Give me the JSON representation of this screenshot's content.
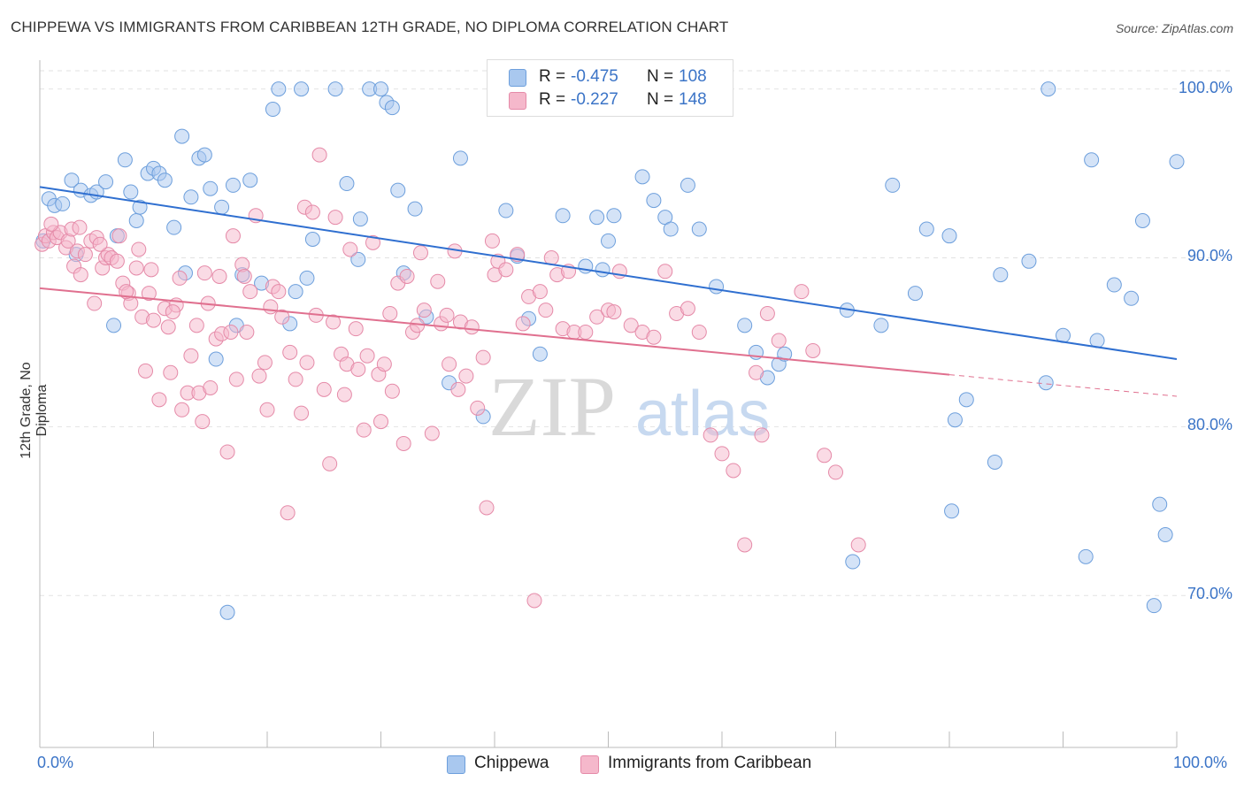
{
  "title": "CHIPPEWA VS IMMIGRANTS FROM CARIBBEAN 12TH GRADE, NO DIPLOMA CORRELATION CHART",
  "source": "Source: ZipAtlas.com",
  "watermark": {
    "zip": "ZIP",
    "atlas": "atlas"
  },
  "legend": {
    "r_label": "R =",
    "n_label": "N =",
    "rows": [
      {
        "r": "-0.475",
        "n": "108",
        "color": "#a9c8ef"
      },
      {
        "r": "-0.227",
        "n": "148",
        "color": "#f5b8cb"
      }
    ]
  },
  "chart_data": {
    "type": "scatter",
    "title": "CHIPPEWA VS IMMIGRANTS FROM CARIBBEAN 12TH GRADE, NO DIPLOMA CORRELATION CHART",
    "xlabel": "",
    "ylabel": "12th Grade, No Diploma",
    "xlim": [
      0,
      100
    ],
    "ylim": [
      61,
      101.5
    ],
    "x_tick_labels": [
      "0.0%",
      "100.0%"
    ],
    "y_ticks": [
      70,
      80,
      90,
      100
    ],
    "y_tick_labels": [
      "70.0%",
      "80.0%",
      "90.0%",
      "100.0%"
    ],
    "grid": "horizontal dashed",
    "legend_position": "top-center",
    "series": [
      {
        "name": "Chippewa",
        "color": "#a9c8ef",
        "stroke": "#6d9fdc",
        "trend": {
          "x0": 0,
          "y0": 94.2,
          "x1": 100,
          "y1": 84.0,
          "dashed_from": null
        },
        "points": [
          [
            0.3,
            91.0
          ],
          [
            0.8,
            93.5
          ],
          [
            1.3,
            93.1
          ],
          [
            2.0,
            93.2
          ],
          [
            2.8,
            94.6
          ],
          [
            3.2,
            90.2
          ],
          [
            3.6,
            94.0
          ],
          [
            4.5,
            93.7
          ],
          [
            5.0,
            93.9
          ],
          [
            5.8,
            94.5
          ],
          [
            6.5,
            86.0
          ],
          [
            6.8,
            91.3
          ],
          [
            7.5,
            95.8
          ],
          [
            8.0,
            93.9
          ],
          [
            8.5,
            92.2
          ],
          [
            8.8,
            93.0
          ],
          [
            9.5,
            95.0
          ],
          [
            10.0,
            95.3
          ],
          [
            10.5,
            95.0
          ],
          [
            11.0,
            94.6
          ],
          [
            11.8,
            91.8
          ],
          [
            12.5,
            97.2
          ],
          [
            12.8,
            89.1
          ],
          [
            13.3,
            93.6
          ],
          [
            14.0,
            95.9
          ],
          [
            14.5,
            96.1
          ],
          [
            15.0,
            94.1
          ],
          [
            15.5,
            84.0
          ],
          [
            16.0,
            93.0
          ],
          [
            16.5,
            69.0
          ],
          [
            17.0,
            94.3
          ],
          [
            17.3,
            86.0
          ],
          [
            17.8,
            89.0
          ],
          [
            18.5,
            94.6
          ],
          [
            19.5,
            88.5
          ],
          [
            20.5,
            98.8
          ],
          [
            21.0,
            100.0
          ],
          [
            22.0,
            86.1
          ],
          [
            22.5,
            88.0
          ],
          [
            23.0,
            100.0
          ],
          [
            23.5,
            88.8
          ],
          [
            24.0,
            91.1
          ],
          [
            26.0,
            100.0
          ],
          [
            27.0,
            94.4
          ],
          [
            28.0,
            89.9
          ],
          [
            28.2,
            92.3
          ],
          [
            29.0,
            100.0
          ],
          [
            30.0,
            100.0
          ],
          [
            30.5,
            99.2
          ],
          [
            31.0,
            98.9
          ],
          [
            31.5,
            94.0
          ],
          [
            32.0,
            89.1
          ],
          [
            33.0,
            92.9
          ],
          [
            34.0,
            86.5
          ],
          [
            36.0,
            82.6
          ],
          [
            37.0,
            95.9
          ],
          [
            39.0,
            80.6
          ],
          [
            41.0,
            92.8
          ],
          [
            42.0,
            90.1
          ],
          [
            43.0,
            86.4
          ],
          [
            44.0,
            84.3
          ],
          [
            46.0,
            92.5
          ],
          [
            48.0,
            89.5
          ],
          [
            49.0,
            92.4
          ],
          [
            49.5,
            89.3
          ],
          [
            50.0,
            91.0
          ],
          [
            50.5,
            92.5
          ],
          [
            53.0,
            94.8
          ],
          [
            54.0,
            93.4
          ],
          [
            55.0,
            92.4
          ],
          [
            55.5,
            91.7
          ],
          [
            57.0,
            94.3
          ],
          [
            58.0,
            91.7
          ],
          [
            59.5,
            88.3
          ],
          [
            62.0,
            86.0
          ],
          [
            63.0,
            84.4
          ],
          [
            64.0,
            82.9
          ],
          [
            65.0,
            83.7
          ],
          [
            65.5,
            84.3
          ],
          [
            71.0,
            86.9
          ],
          [
            71.5,
            72.0
          ],
          [
            74.0,
            86.0
          ],
          [
            75.0,
            94.3
          ],
          [
            77.0,
            87.9
          ],
          [
            78.0,
            91.7
          ],
          [
            80.0,
            91.3
          ],
          [
            80.2,
            75.0
          ],
          [
            80.5,
            80.4
          ],
          [
            81.5,
            81.6
          ],
          [
            84.0,
            77.9
          ],
          [
            84.5,
            89.0
          ],
          [
            87.0,
            89.8
          ],
          [
            88.5,
            82.6
          ],
          [
            88.7,
            100.0
          ],
          [
            90.0,
            85.4
          ],
          [
            92.0,
            72.3
          ],
          [
            92.5,
            95.8
          ],
          [
            93.0,
            85.1
          ],
          [
            94.5,
            88.4
          ],
          [
            96.0,
            87.6
          ],
          [
            97.0,
            92.2
          ],
          [
            98.0,
            69.4
          ],
          [
            98.5,
            75.4
          ],
          [
            99.0,
            73.6
          ],
          [
            100.0,
            95.7
          ]
        ]
      },
      {
        "name": "Immigrants from Caribbean",
        "color": "#f5b8cb",
        "stroke": "#e58aa8",
        "trend": {
          "x0": 0,
          "y0": 88.2,
          "x1": 100,
          "y1": 81.8,
          "dashed_from": 80
        },
        "points": [
          [
            0.2,
            90.8
          ],
          [
            0.5,
            91.3
          ],
          [
            0.8,
            91.0
          ],
          [
            1.2,
            91.5
          ],
          [
            1.5,
            91.2
          ],
          [
            1.8,
            91.5
          ],
          [
            2.3,
            90.6
          ],
          [
            2.5,
            91.0
          ],
          [
            2.8,
            91.7
          ],
          [
            3.0,
            89.5
          ],
          [
            3.3,
            90.4
          ],
          [
            3.6,
            89.0
          ],
          [
            4.0,
            90.2
          ],
          [
            4.5,
            91.0
          ],
          [
            4.8,
            87.3
          ],
          [
            5.0,
            91.2
          ],
          [
            5.5,
            89.4
          ],
          [
            5.8,
            90.0
          ],
          [
            6.0,
            90.2
          ],
          [
            6.3,
            90.0
          ],
          [
            6.8,
            89.8
          ],
          [
            7.0,
            91.3
          ],
          [
            7.3,
            88.5
          ],
          [
            7.8,
            87.9
          ],
          [
            8.0,
            87.3
          ],
          [
            8.5,
            89.4
          ],
          [
            8.7,
            90.5
          ],
          [
            9.0,
            86.5
          ],
          [
            9.3,
            83.3
          ],
          [
            9.8,
            89.3
          ],
          [
            10.0,
            86.3
          ],
          [
            10.5,
            81.6
          ],
          [
            11.0,
            87.0
          ],
          [
            11.3,
            85.9
          ],
          [
            11.5,
            83.2
          ],
          [
            12.0,
            87.2
          ],
          [
            12.3,
            88.8
          ],
          [
            12.5,
            81.0
          ],
          [
            13.0,
            82.0
          ],
          [
            13.3,
            84.2
          ],
          [
            13.8,
            86.0
          ],
          [
            14.0,
            82.0
          ],
          [
            14.3,
            80.3
          ],
          [
            14.5,
            89.1
          ],
          [
            14.8,
            87.3
          ],
          [
            15.0,
            82.3
          ],
          [
            15.5,
            85.2
          ],
          [
            15.8,
            88.9
          ],
          [
            16.0,
            85.5
          ],
          [
            16.5,
            78.5
          ],
          [
            16.8,
            85.6
          ],
          [
            17.0,
            91.3
          ],
          [
            17.3,
            82.8
          ],
          [
            17.8,
            89.6
          ],
          [
            18.0,
            88.9
          ],
          [
            18.2,
            85.6
          ],
          [
            18.5,
            88.0
          ],
          [
            19.0,
            92.5
          ],
          [
            19.3,
            83.0
          ],
          [
            19.8,
            83.8
          ],
          [
            20.0,
            81.0
          ],
          [
            20.3,
            87.1
          ],
          [
            20.5,
            88.3
          ],
          [
            21.0,
            88.0
          ],
          [
            21.3,
            86.5
          ],
          [
            21.8,
            74.9
          ],
          [
            22.0,
            84.4
          ],
          [
            22.5,
            82.8
          ],
          [
            23.0,
            80.8
          ],
          [
            23.3,
            93.0
          ],
          [
            23.5,
            83.8
          ],
          [
            24.0,
            92.7
          ],
          [
            24.3,
            86.6
          ],
          [
            24.6,
            96.1
          ],
          [
            25.0,
            82.2
          ],
          [
            25.5,
            77.8
          ],
          [
            25.8,
            86.2
          ],
          [
            26.0,
            92.4
          ],
          [
            26.5,
            84.3
          ],
          [
            26.8,
            81.9
          ],
          [
            27.0,
            83.7
          ],
          [
            27.3,
            90.5
          ],
          [
            27.8,
            85.8
          ],
          [
            28.0,
            83.4
          ],
          [
            28.5,
            79.8
          ],
          [
            28.8,
            84.2
          ],
          [
            29.3,
            90.9
          ],
          [
            29.8,
            83.1
          ],
          [
            30.0,
            80.3
          ],
          [
            30.3,
            83.7
          ],
          [
            30.8,
            86.7
          ],
          [
            31.0,
            82.1
          ],
          [
            31.5,
            88.5
          ],
          [
            32.0,
            79.0
          ],
          [
            32.3,
            88.9
          ],
          [
            32.8,
            85.6
          ],
          [
            33.2,
            86.0
          ],
          [
            33.5,
            90.3
          ],
          [
            33.8,
            86.9
          ],
          [
            34.5,
            79.6
          ],
          [
            35.0,
            88.6
          ],
          [
            35.3,
            86.1
          ],
          [
            35.8,
            86.6
          ],
          [
            36.0,
            83.7
          ],
          [
            36.5,
            90.4
          ],
          [
            36.8,
            82.2
          ],
          [
            37.0,
            86.2
          ],
          [
            37.5,
            83.0
          ],
          [
            38.0,
            85.9
          ],
          [
            38.5,
            81.1
          ],
          [
            39.0,
            84.1
          ],
          [
            39.3,
            75.2
          ],
          [
            39.8,
            91.0
          ],
          [
            40.0,
            89.0
          ],
          [
            40.3,
            89.8
          ],
          [
            41.0,
            89.3
          ],
          [
            42.0,
            90.2
          ],
          [
            42.5,
            86.1
          ],
          [
            43.0,
            87.7
          ],
          [
            43.5,
            69.7
          ],
          [
            44.0,
            88.0
          ],
          [
            44.5,
            86.9
          ],
          [
            45.0,
            90.0
          ],
          [
            45.5,
            89.0
          ],
          [
            46.0,
            85.8
          ],
          [
            46.5,
            89.2
          ],
          [
            47.0,
            85.6
          ],
          [
            48.0,
            85.6
          ],
          [
            49.0,
            86.5
          ],
          [
            50.0,
            86.9
          ],
          [
            50.5,
            86.8
          ],
          [
            51.0,
            89.2
          ],
          [
            52.0,
            86.0
          ],
          [
            53.0,
            85.6
          ],
          [
            54.0,
            85.3
          ],
          [
            55.0,
            89.2
          ],
          [
            56.0,
            86.7
          ],
          [
            57.0,
            87.0
          ],
          [
            58.0,
            85.6
          ],
          [
            59.0,
            79.5
          ],
          [
            60.0,
            78.4
          ],
          [
            61.0,
            77.4
          ],
          [
            62.0,
            73.0
          ],
          [
            63.0,
            83.2
          ],
          [
            63.5,
            79.5
          ],
          [
            64.0,
            86.7
          ],
          [
            65.0,
            85.1
          ],
          [
            67.0,
            88.0
          ],
          [
            68.0,
            84.5
          ],
          [
            69.0,
            78.3
          ],
          [
            70.0,
            77.3
          ],
          [
            72.0,
            73.0
          ],
          [
            1.0,
            92.0
          ],
          [
            3.5,
            91.8
          ],
          [
            5.3,
            90.8
          ],
          [
            7.6,
            88.0
          ],
          [
            9.6,
            87.9
          ],
          [
            11.7,
            86.8
          ]
        ]
      }
    ]
  },
  "bottom_legend": [
    {
      "label": "Chippewa",
      "color": "#a9c8ef"
    },
    {
      "label": "Immigrants from Caribbean",
      "color": "#f5b8cb"
    }
  ]
}
